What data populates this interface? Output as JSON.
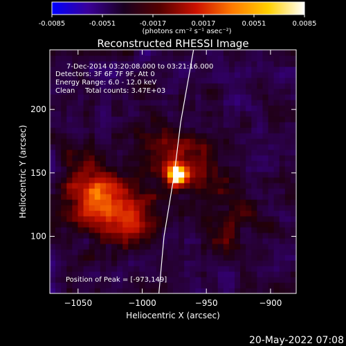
{
  "colors": {
    "background": "#000000",
    "foreground": "#ffffff",
    "colorbar_stops": [
      "#0000ff",
      "#3a0099",
      "#1a0020",
      "#550000",
      "#cc1100",
      "#ff7a00",
      "#ffd000",
      "#ffffff"
    ],
    "limb_line": "#ffffff"
  },
  "colorbar": {
    "tick_labels": [
      "-0.0085",
      "-0.0051",
      "-0.0017",
      "0.0017",
      "0.0051",
      "0.0085"
    ],
    "range": [
      -0.0085,
      0.0085
    ],
    "unit_text": "(photons cm⁻² s⁻¹ asec⁻²)"
  },
  "title": "Reconstructed RHESSI Image",
  "info_lines": {
    "time": "7-Dec-2014 03:20:08.000 to 03:21:16.000",
    "detectors": "Detectors: 3F 6F 7F 9F, Att 0",
    "energy": "Energy Range: 6.0 - 12.0 keV",
    "clean": "Clean",
    "counts": "Total counts: 3.47E+03"
  },
  "peak_label": "Position of Peak = [-973,149]",
  "footer_date": "20-May-2022 07:08",
  "chart_data": {
    "type": "heatmap",
    "title": "Reconstructed RHESSI Image",
    "xlabel": "Heliocentric X (arcsec)",
    "ylabel": "Heliocentric Y (arcsec)",
    "xlim": [
      -1072,
      -880
    ],
    "ylim": [
      55,
      247
    ],
    "x_ticks": [
      -1050,
      -1000,
      -950,
      -900
    ],
    "y_ticks": [
      100,
      150,
      200
    ],
    "peak": {
      "x": -973,
      "y": 149
    },
    "limb_points": [
      [
        -960,
        247
      ],
      [
        -970,
        190
      ],
      [
        -975,
        149
      ],
      [
        -983,
        100
      ],
      [
        -987,
        55
      ]
    ],
    "emission_blobs": [
      {
        "x": -973,
        "y": 149,
        "weight": 1.0
      },
      {
        "x": -955,
        "y": 152,
        "weight": 0.35
      },
      {
        "x": -1030,
        "y": 125,
        "weight": 0.45
      },
      {
        "x": -1010,
        "y": 115,
        "weight": 0.35
      },
      {
        "x": -1045,
        "y": 145,
        "weight": 0.3
      },
      {
        "x": -985,
        "y": 170,
        "weight": 0.3
      },
      {
        "x": -930,
        "y": 110,
        "weight": 0.2
      }
    ]
  }
}
